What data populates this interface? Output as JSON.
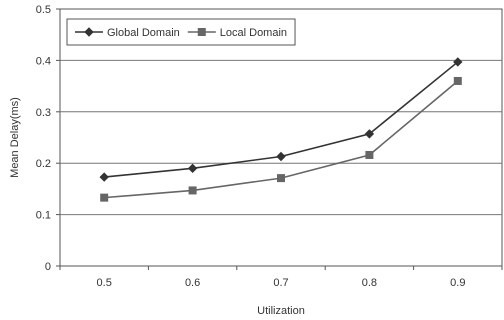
{
  "chart_data": {
    "type": "line",
    "title": "",
    "xlabel": "Utilization",
    "ylabel": "Mean Delay(ms)",
    "x": [
      0.5,
      0.6,
      0.7,
      0.8,
      0.9
    ],
    "x_tick_labels": [
      "0.5",
      "0.6",
      "0.7",
      "0.8",
      "0.9"
    ],
    "ylim": [
      0,
      0.5
    ],
    "y_ticks": [
      0,
      0.1,
      0.2,
      0.3,
      0.4,
      0.5
    ],
    "y_tick_labels": [
      "0",
      "0.1",
      "0.2",
      "0.3",
      "0.4",
      "0.5"
    ],
    "grid": "horizontal",
    "legend_position": "top-left",
    "series": [
      {
        "name": "Global Domain",
        "marker": "diamond",
        "color": "#333333",
        "values": [
          0.173,
          0.19,
          0.213,
          0.257,
          0.397
        ]
      },
      {
        "name": "Local Domain",
        "marker": "square",
        "color": "#666666",
        "values": [
          0.133,
          0.147,
          0.171,
          0.216,
          0.36
        ]
      }
    ]
  }
}
